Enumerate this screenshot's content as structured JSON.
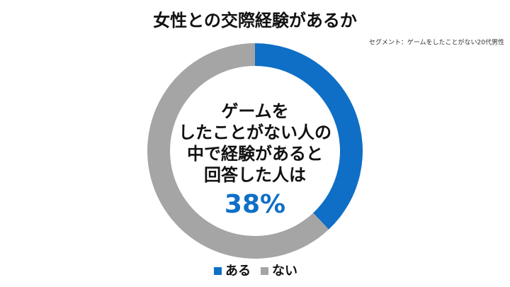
{
  "chart_data": {
    "type": "donut",
    "title": "女性との交際経験があるか",
    "subtitle": "セグメント：ゲームをしたことがない20代男性",
    "categories": [
      "ある",
      "ない"
    ],
    "values": [
      38,
      62
    ],
    "colors": [
      "#0f6fc6",
      "#a5a5a5"
    ],
    "center_text": [
      "ゲームを",
      "したことがない人の",
      "中で経験があると",
      "回答した人は"
    ],
    "center_value": "38%",
    "legend": "bottom"
  }
}
